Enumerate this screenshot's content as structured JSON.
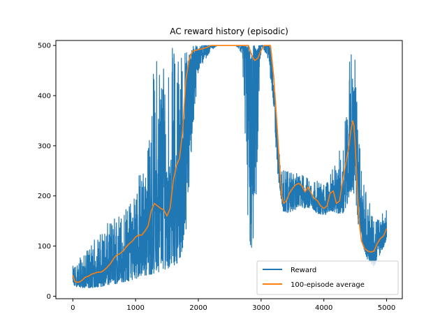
{
  "chart_data": {
    "type": "line",
    "title": "AC reward history (episodic)",
    "xlabel": "",
    "ylabel": "",
    "xlim": [
      -270,
      5250
    ],
    "ylim": [
      -5,
      510
    ],
    "xticks": [
      0,
      1000,
      2000,
      3000,
      4000,
      5000
    ],
    "yticks": [
      0,
      100,
      200,
      300,
      400,
      500
    ],
    "legend_position": "lower-right",
    "grid": false,
    "series": [
      {
        "name": "Reward",
        "color": "#1f77b4",
        "style": "noisy",
        "x": [
          0,
          100,
          200,
          300,
          400,
          500,
          600,
          700,
          800,
          900,
          1000,
          1100,
          1200,
          1300,
          1400,
          1500,
          1600,
          1700,
          1800,
          1900,
          2000,
          2100,
          2200,
          2300,
          2400,
          2500,
          2600,
          2700,
          2800,
          2850,
          2900,
          3000,
          3100,
          3150,
          3200,
          3250,
          3300,
          3350,
          3400,
          3500,
          3600,
          3700,
          3800,
          3900,
          4000,
          4100,
          4200,
          4300,
          4400,
          4450,
          4500,
          4550,
          4600,
          4700,
          4800,
          4900,
          5000
        ],
        "low": [
          20,
          18,
          16,
          17,
          18,
          20,
          22,
          25,
          28,
          30,
          35,
          38,
          42,
          45,
          50,
          55,
          60,
          70,
          120,
          300,
          450,
          470,
          490,
          500,
          500,
          500,
          500,
          480,
          100,
          90,
          110,
          500,
          480,
          430,
          380,
          260,
          210,
          170,
          165,
          170,
          175,
          175,
          175,
          165,
          160,
          170,
          165,
          165,
          190,
          210,
          200,
          140,
          110,
          70,
          60,
          85,
          110
        ],
        "high": [
          60,
          75,
          85,
          110,
          120,
          140,
          150,
          165,
          175,
          185,
          235,
          260,
          300,
          480,
          500,
          500,
          500,
          500,
          500,
          500,
          500,
          500,
          500,
          500,
          500,
          500,
          500,
          500,
          500,
          500,
          500,
          500,
          500,
          500,
          400,
          350,
          270,
          255,
          250,
          245,
          245,
          240,
          235,
          230,
          225,
          240,
          275,
          310,
          490,
          500,
          480,
          330,
          260,
          200,
          150,
          160,
          185
        ],
        "mean": [
          30,
          28,
          30,
          35,
          40,
          45,
          52,
          60,
          75,
          85,
          100,
          110,
          125,
          170,
          185,
          175,
          180,
          200,
          330,
          480,
          490,
          495,
          500,
          500,
          500,
          500,
          500,
          500,
          480,
          460,
          480,
          500,
          500,
          490,
          430,
          330,
          230,
          185,
          190,
          215,
          220,
          205,
          200,
          185,
          180,
          195,
          195,
          200,
          260,
          350,
          345,
          200,
          140,
          95,
          90,
          110,
          130
        ]
      },
      {
        "name": "100-episode average",
        "color": "#ff7f0e",
        "style": "line",
        "x": [
          0,
          30,
          60,
          100,
          150,
          200,
          250,
          300,
          350,
          400,
          450,
          500,
          550,
          600,
          650,
          700,
          750,
          800,
          850,
          900,
          950,
          1000,
          1050,
          1100,
          1150,
          1200,
          1250,
          1300,
          1350,
          1400,
          1450,
          1500,
          1550,
          1600,
          1650,
          1700,
          1750,
          1800,
          1850,
          1900,
          1950,
          2000,
          2050,
          2100,
          2150,
          2200,
          2300,
          2400,
          2500,
          2600,
          2700,
          2800,
          2830,
          2860,
          2900,
          2950,
          3000,
          3050,
          3100,
          3150,
          3200,
          3250,
          3300,
          3330,
          3360,
          3400,
          3450,
          3500,
          3550,
          3600,
          3650,
          3700,
          3750,
          3800,
          3850,
          3900,
          3950,
          4000,
          4050,
          4100,
          4150,
          4200,
          4250,
          4300,
          4350,
          4400,
          4430,
          4460,
          4480,
          4500,
          4530,
          4560,
          4600,
          4650,
          4700,
          4750,
          4800,
          4850,
          4900,
          4950,
          5000
        ],
        "y": [
          42,
          30,
          28,
          28,
          32,
          38,
          40,
          44,
          46,
          48,
          48,
          52,
          58,
          65,
          75,
          82,
          85,
          90,
          98,
          105,
          110,
          118,
          122,
          122,
          130,
          140,
          170,
          185,
          180,
          175,
          172,
          160,
          175,
          230,
          260,
          275,
          330,
          430,
          470,
          488,
          490,
          492,
          493,
          495,
          497,
          500,
          500,
          500,
          500,
          500,
          500,
          500,
          488,
          478,
          470,
          475,
          490,
          500,
          500,
          500,
          440,
          350,
          250,
          200,
          185,
          190,
          205,
          215,
          222,
          225,
          220,
          208,
          218,
          205,
          195,
          190,
          180,
          175,
          180,
          205,
          210,
          185,
          190,
          230,
          265,
          300,
          330,
          350,
          340,
          300,
          220,
          150,
          110,
          95,
          90,
          88,
          90,
          105,
          115,
          120,
          135
        ]
      }
    ]
  }
}
